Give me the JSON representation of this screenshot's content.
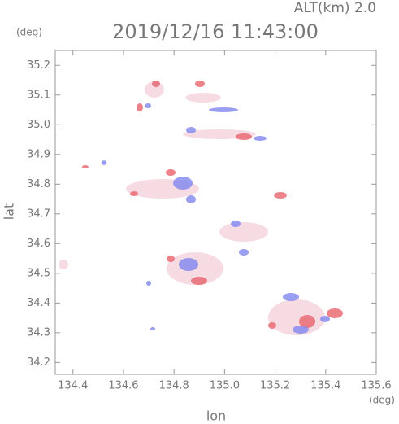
{
  "chart_data": {
    "type": "map",
    "title": "2019/12/16 11:43:00",
    "altitude_label": "ALT(km)  2.0",
    "x_label": "lon",
    "y_label": "lat",
    "x_unit": "(deg)",
    "y_unit": "(deg)",
    "xlim": [
      134.33,
      135.6
    ],
    "ylim": [
      34.16,
      35.25
    ],
    "xticks": [
      134.4,
      134.6,
      134.8,
      {
        "value": 135,
        "label": "135.0"
      },
      135.2,
      135.4,
      135.6
    ],
    "yticks": [
      34.2,
      34.3,
      34.4,
      34.5,
      34.6,
      34.7,
      34.8,
      34.9,
      {
        "value": 35,
        "label": "35.0"
      },
      35.1,
      35.2
    ]
  }
}
